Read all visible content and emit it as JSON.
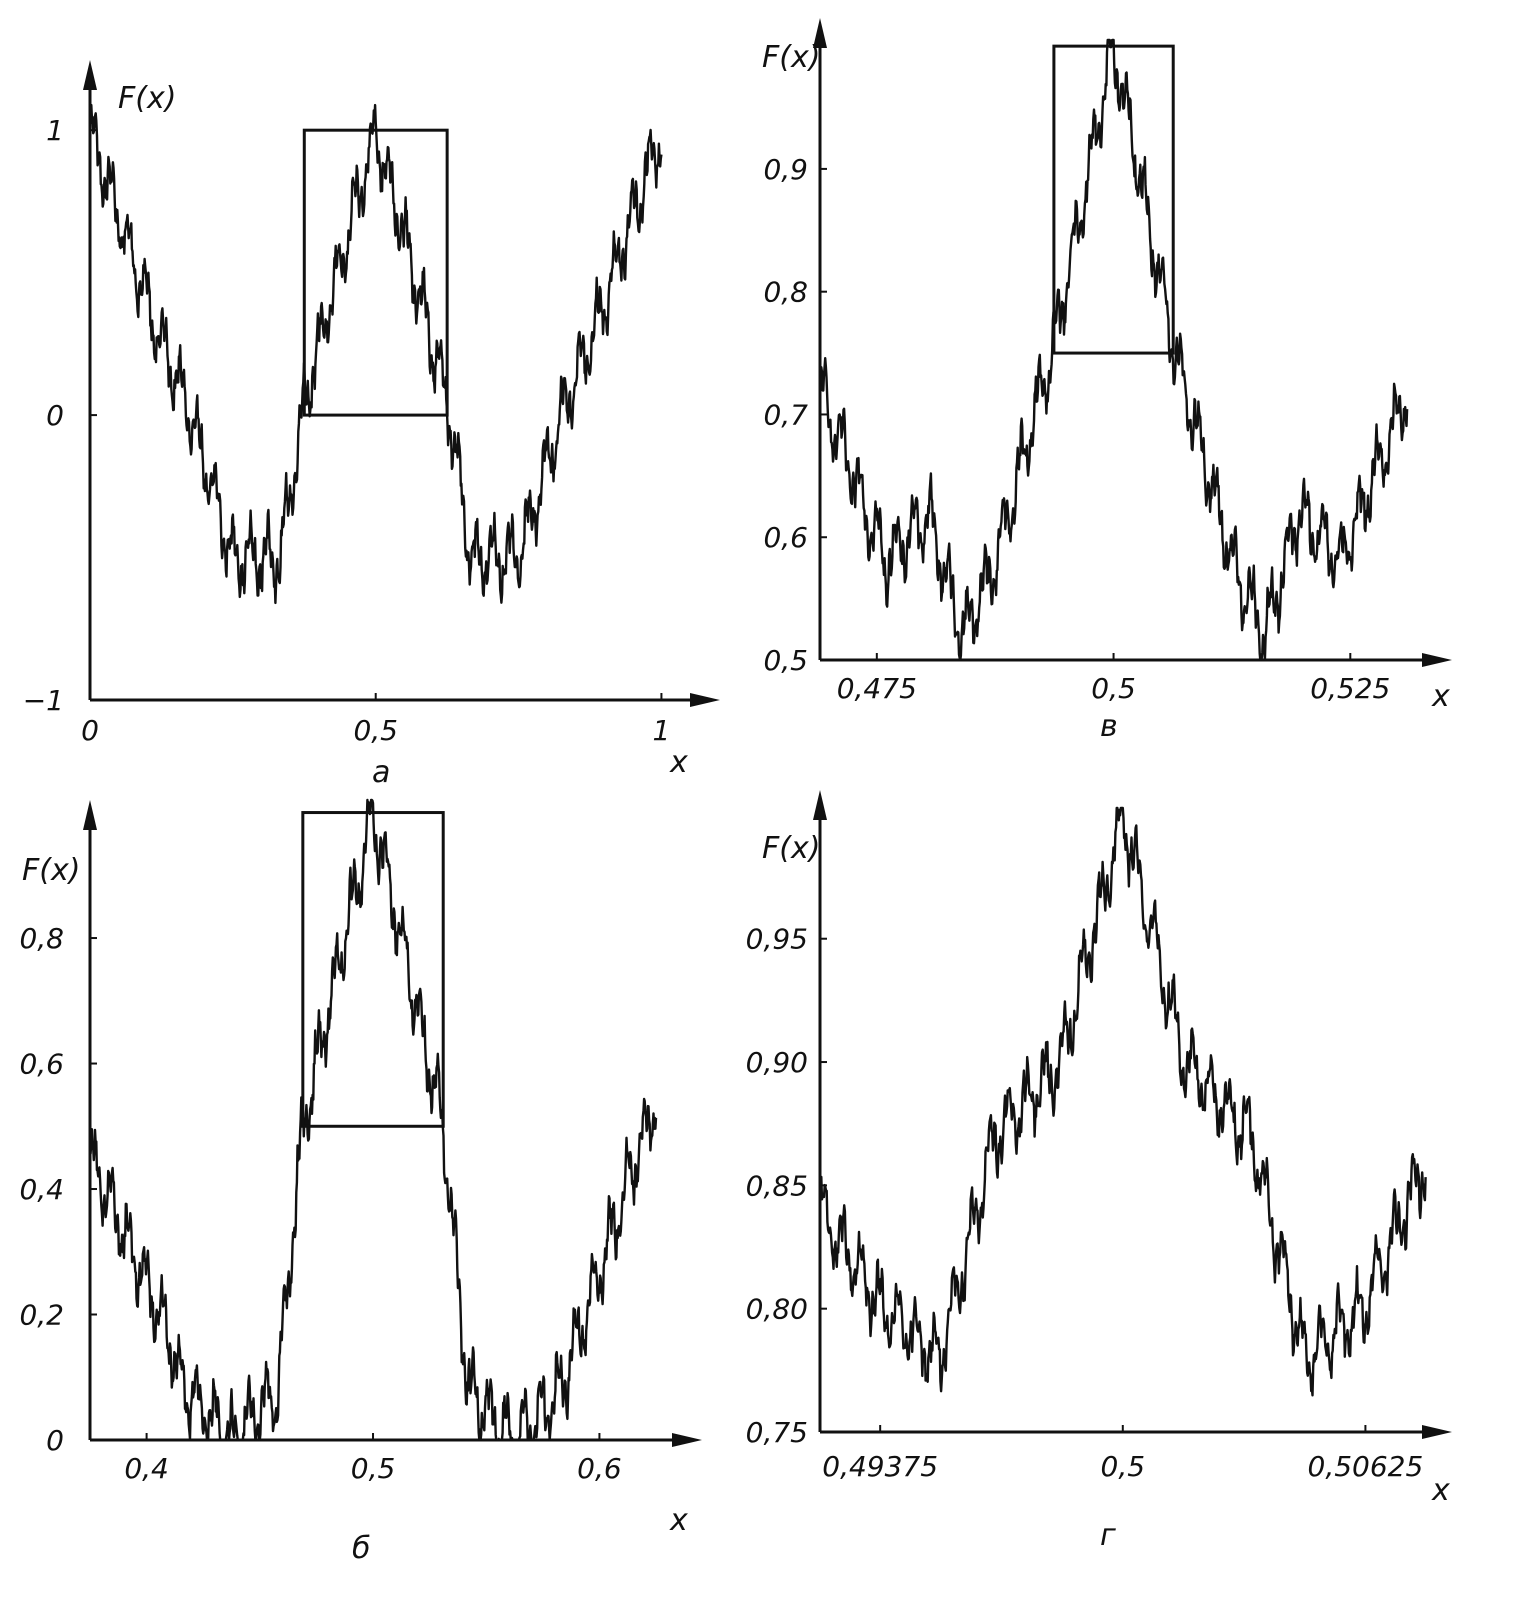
{
  "chart_data": [
    {
      "type": "line",
      "panel_label": "а",
      "ylabel": "F(x)",
      "xlabel": "x",
      "x_ticks": [
        {
          "value": 0,
          "label": "0"
        },
        {
          "value": 0.5,
          "label": "0,5"
        },
        {
          "value": 1,
          "label": "1"
        }
      ],
      "y_ticks": [
        {
          "value": -1,
          "label": "−1"
        },
        {
          "value": 0,
          "label": "0"
        },
        {
          "value": 1,
          "label": "1"
        }
      ],
      "xlim": [
        0,
        1.05
      ],
      "ylim": [
        -1,
        1.12
      ],
      "zoom_box": {
        "x": [
          0.375,
          0.625
        ],
        "y": [
          0,
          1
        ]
      },
      "series": [
        {
          "values": {
            "x": [
              0,
              0.125,
              0.167,
              0.25,
              0.333,
              0.375,
              0.5,
              0.625,
              0.667,
              0.75,
              0.833,
              0.875,
              1
            ],
            "y": [
              1,
              0.25,
              0.05,
              -0.5,
              -0.5,
              0.05,
              1,
              0.05,
              -0.5,
              -0.5,
              0.05,
              0.25,
              1
            ]
          }
        }
      ]
    },
    {
      "type": "line",
      "panel_label": "б",
      "ylabel": "F(x)",
      "xlabel": "x",
      "x_ticks": [
        {
          "value": 0.4,
          "label": "0,4"
        },
        {
          "value": 0.5,
          "label": "0,5"
        },
        {
          "value": 0.6,
          "label": "0,6"
        }
      ],
      "y_ticks": [
        {
          "value": 0,
          "label": "0"
        },
        {
          "value": 0.2,
          "label": "0,2"
        },
        {
          "value": 0.4,
          "label": "0,4"
        },
        {
          "value": 0.6,
          "label": "0,6"
        },
        {
          "value": 0.8,
          "label": "0,8"
        }
      ],
      "xlim": [
        0.375,
        0.64
      ],
      "ylim": [
        0,
        1.02
      ],
      "zoom_box": {
        "x": [
          0.469,
          0.531
        ],
        "y": [
          0.5,
          1
        ]
      },
      "series": [
        {
          "values": {
            "x": [
              0.375,
              0.406,
              0.417,
              0.4375,
              0.458,
              0.469,
              0.5,
              0.531,
              0.542,
              0.5625,
              0.583,
              0.594,
              0.625
            ],
            "y": [
              0.45,
              0.2,
              0.08,
              0,
              0.08,
              0.5,
              1,
              0.5,
              0.08,
              0,
              0.08,
              0.2,
              0.55
            ]
          }
        }
      ]
    },
    {
      "type": "line",
      "panel_label": "в",
      "ylabel": "F(x)",
      "xlabel": "x",
      "x_ticks": [
        {
          "value": 0.475,
          "label": "0,475"
        },
        {
          "value": 0.5,
          "label": "0,5"
        },
        {
          "value": 0.525,
          "label": "0,525"
        }
      ],
      "y_ticks": [
        {
          "value": 0.5,
          "label": "0,5"
        },
        {
          "value": 0.6,
          "label": "0,6"
        },
        {
          "value": 0.7,
          "label": "0,7"
        },
        {
          "value": 0.8,
          "label": "0,8"
        },
        {
          "value": 0.9,
          "label": "0,9"
        }
      ],
      "xlim": [
        0.469,
        0.535
      ],
      "ylim": [
        0.5,
        1.005
      ],
      "zoom_box": {
        "x": [
          0.4937,
          0.5063
        ],
        "y": [
          0.75,
          1
        ]
      },
      "series": [
        {
          "values": {
            "x": [
              0.469,
              0.476,
              0.4805,
              0.484,
              0.4875,
              0.4938,
              0.5,
              0.5062,
              0.5125,
              0.516,
              0.5195,
              0.524,
              0.531
            ],
            "y": [
              0.72,
              0.58,
              0.62,
              0.52,
              0.58,
              0.76,
              1,
              0.76,
              0.58,
              0.52,
              0.62,
              0.58,
              0.72
            ]
          }
        }
      ]
    },
    {
      "type": "line",
      "panel_label": "г",
      "ylabel": "F(x)",
      "xlabel": "x",
      "x_ticks": [
        {
          "value": 0.49375,
          "label": "0,49375"
        },
        {
          "value": 0.5,
          "label": "0,5"
        },
        {
          "value": 0.50625,
          "label": "0,50625"
        }
      ],
      "y_ticks": [
        {
          "value": 0.75,
          "label": "0,75"
        },
        {
          "value": 0.8,
          "label": "0,80"
        },
        {
          "value": 0.85,
          "label": "0,85"
        },
        {
          "value": 0.9,
          "label": "0,90"
        },
        {
          "value": 0.95,
          "label": "0,95"
        }
      ],
      "xlim": [
        0.4922,
        0.5083
      ],
      "ylim": [
        0.75,
        1.003
      ],
      "zoom_box": null,
      "series": [
        {
          "values": {
            "x": [
              0.4922,
              0.4938,
              0.4953,
              0.4967,
              0.4984,
              0.5,
              0.5016,
              0.5033,
              0.5047,
              0.5062,
              0.5078
            ],
            "y": [
              0.84,
              0.8,
              0.78,
              0.87,
              0.9,
              1,
              0.9,
              0.87,
              0.78,
              0.8,
              0.86
            ]
          }
        }
      ]
    }
  ]
}
